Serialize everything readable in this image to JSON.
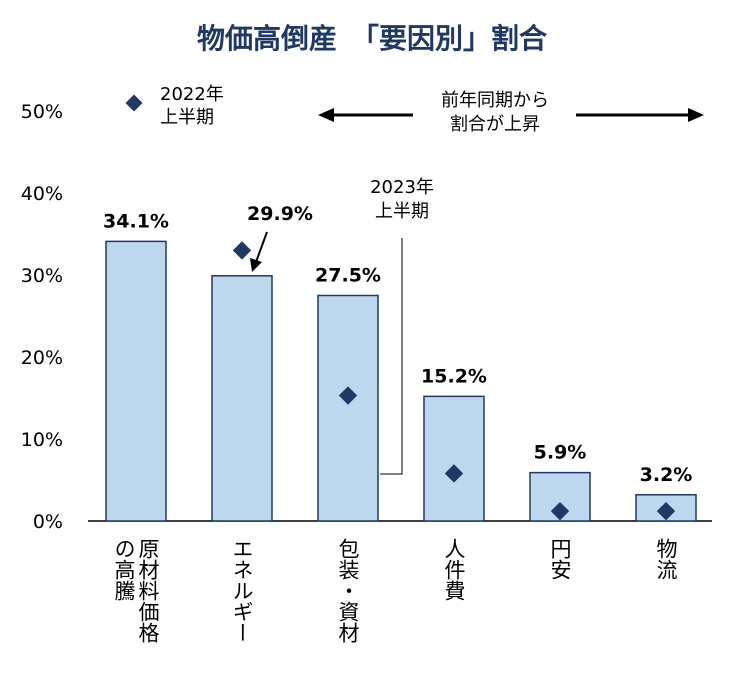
{
  "chart_data": {
    "type": "bar",
    "title": "物価高倒産　「要因別」割合",
    "categories": [
      [
        "原材料価格",
        "の高騰"
      ],
      [
        "エネルギー"
      ],
      [
        "包装・資材"
      ],
      [
        "人件費"
      ],
      [
        "円安"
      ],
      [
        "物流"
      ]
    ],
    "series": [
      {
        "name": "2023年上半期",
        "values": [
          34.1,
          29.9,
          27.5,
          15.2,
          5.9,
          3.2
        ],
        "color": "#bdd7ee",
        "stroke": "#1f3864"
      },
      {
        "name": "2022年上半期",
        "values": [
          null,
          33.0,
          15.3,
          5.8,
          1.2,
          1.2
        ],
        "color": "#1f3864",
        "marker": "diamond"
      }
    ],
    "value_labels": [
      "34.1%",
      "29.9%",
      "27.5%",
      "15.2%",
      "5.9%",
      "3.2%"
    ],
    "yticks": [
      "0%",
      "10%",
      "20%",
      "30%",
      "40%",
      "50%"
    ],
    "ylim": [
      0,
      50
    ],
    "legend": {
      "line1": "2022年",
      "line2": "上半期",
      "position": "top-left"
    },
    "annotation_series": {
      "line1": "2023年",
      "line2": "上半期"
    },
    "arrow_note": {
      "line1": "前年同期から",
      "line2": "割合が上昇"
    }
  }
}
